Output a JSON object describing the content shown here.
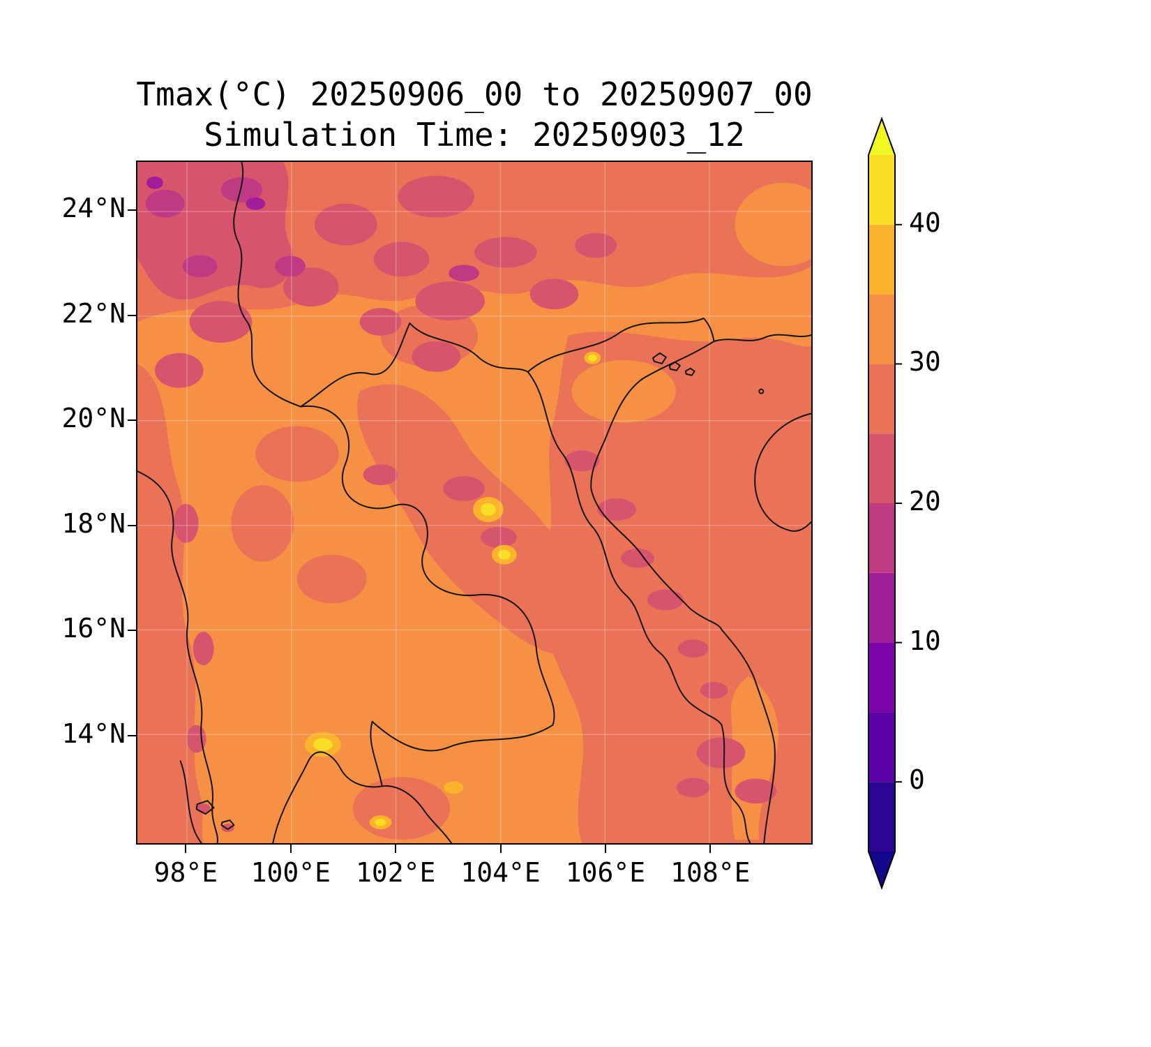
{
  "title": {
    "line1": "Tmax(°C) 20250906_00 to 20250907_00",
    "line2": "Simulation Time: 20250903_12"
  },
  "chart_data": {
    "type": "heatmap",
    "title": "Tmax(°C) 20250906_00 to 20250907_00",
    "subtitle": "Simulation Time: 20250903_12",
    "variable": "Tmax",
    "units": "°C",
    "valid_from": "20250906_00",
    "valid_to": "20250907_00",
    "simulation_time": "20250903_12",
    "grid": "on",
    "legend_position": "right-colorbar",
    "x_axis": {
      "ticks": [
        98,
        100,
        102,
        104,
        106,
        108
      ],
      "tick_labels": [
        "98°E",
        "100°E",
        "102°E",
        "104°E",
        "106°E",
        "108°E"
      ],
      "range": [
        97.05,
        109.95
      ]
    },
    "y_axis": {
      "ticks": [
        14,
        16,
        18,
        20,
        22,
        24
      ],
      "tick_labels": [
        "14°N",
        "16°N",
        "18°N",
        "20°N",
        "22°N",
        "24°N"
      ],
      "range": [
        11.92,
        24.95
      ]
    },
    "colorbar": {
      "colormap": "plasma",
      "range": [
        -5,
        45
      ],
      "band_step": 5,
      "ticks": [
        0,
        10,
        20,
        30,
        40
      ],
      "tick_labels": [
        "0",
        "10",
        "20",
        "30",
        "40"
      ],
      "bands": [
        {
          "from": -5,
          "to": 0,
          "color": "#2D0594"
        },
        {
          "from": 0,
          "to": 5,
          "color": "#5C01A6"
        },
        {
          "from": 5,
          "to": 10,
          "color": "#7E03A8"
        },
        {
          "from": 10,
          "to": 15,
          "color": "#A21D9A"
        },
        {
          "from": 15,
          "to": 20,
          "color": "#C03A83"
        },
        {
          "from": 20,
          "to": 25,
          "color": "#D6556D"
        },
        {
          "from": 25,
          "to": 30,
          "color": "#E97257"
        },
        {
          "from": 30,
          "to": 35,
          "color": "#F59044"
        },
        {
          "from": 35,
          "to": 40,
          "color": "#FCB32C"
        },
        {
          "from": 40,
          "to": 45,
          "color": "#F8DF25"
        }
      ],
      "extend_over_color": "#F0F921",
      "extend_under_color": "#13078C"
    }
  }
}
